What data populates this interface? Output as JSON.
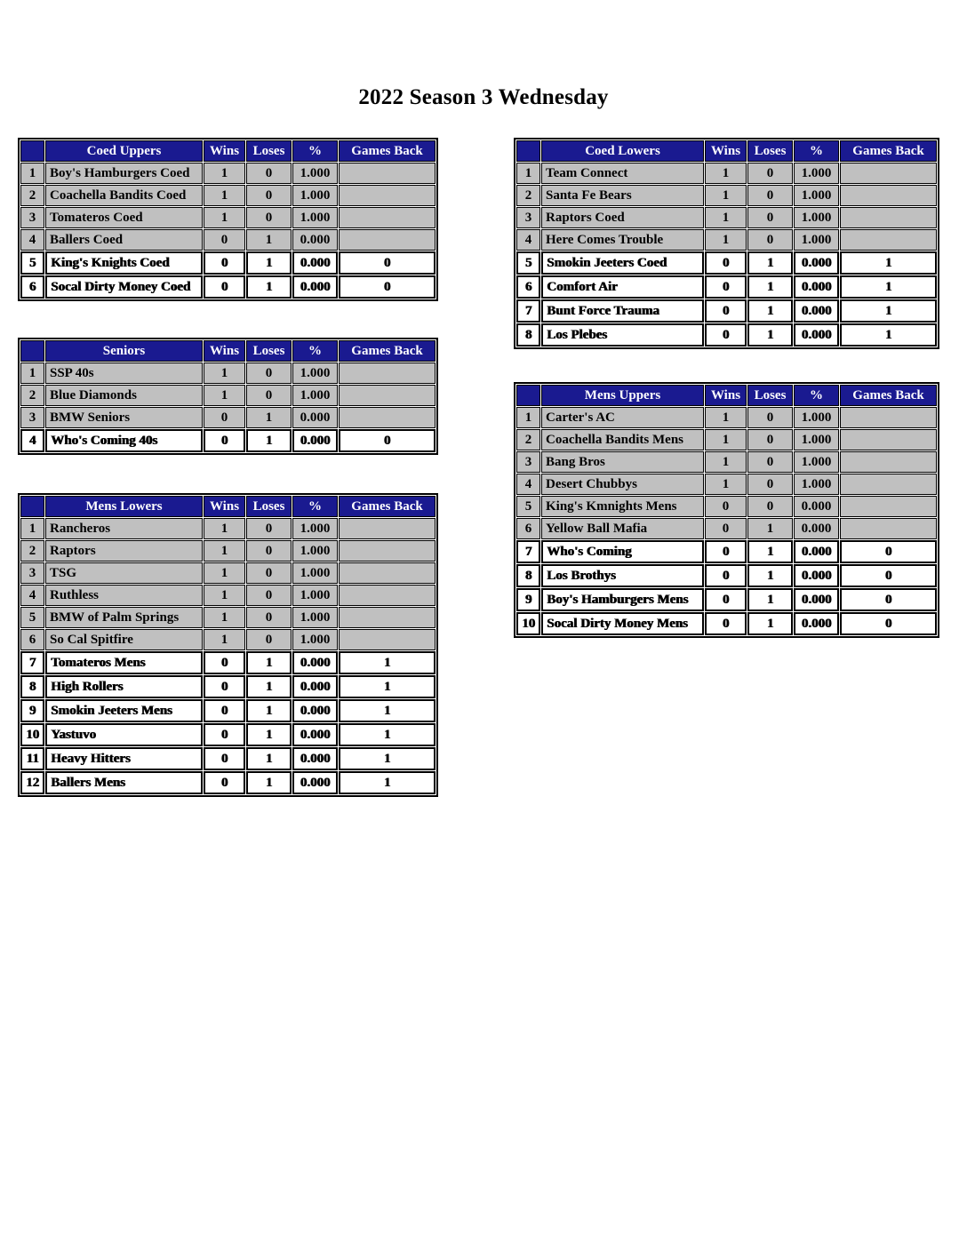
{
  "page": {
    "title": "2022 Season 3 Wednesday"
  },
  "columns": {
    "rank": "",
    "wins": "Wins",
    "loses": "Loses",
    "pct": "%",
    "games_back": "Games Back"
  },
  "tables": [
    {
      "id": "coed-uppers",
      "name": "Coed Uppers",
      "rows": [
        {
          "rank": "1",
          "team": "Boy's Hamburgers Coed",
          "wins": "1",
          "loses": "0",
          "pct": "1.000",
          "games_back": "",
          "shade": "upper"
        },
        {
          "rank": "2",
          "team": "Coachella Bandits Coed",
          "wins": "1",
          "loses": "0",
          "pct": "1.000",
          "games_back": "",
          "shade": "upper"
        },
        {
          "rank": "3",
          "team": "Tomateros Coed",
          "wins": "1",
          "loses": "0",
          "pct": "1.000",
          "games_back": "",
          "shade": "upper"
        },
        {
          "rank": "4",
          "team": "Ballers Coed",
          "wins": "0",
          "loses": "1",
          "pct": "0.000",
          "games_back": "",
          "shade": "upper"
        },
        {
          "rank": "5",
          "team": "King's Knights Coed",
          "wins": "0",
          "loses": "1",
          "pct": "0.000",
          "games_back": "0",
          "shade": "lower"
        },
        {
          "rank": "6",
          "team": "Socal Dirty Money Coed",
          "wins": "0",
          "loses": "1",
          "pct": "0.000",
          "games_back": "0",
          "shade": "lower"
        }
      ]
    },
    {
      "id": "coed-lowers",
      "name": "Coed Lowers",
      "rows": [
        {
          "rank": "1",
          "team": "Team Connect",
          "wins": "1",
          "loses": "0",
          "pct": "1.000",
          "games_back": "",
          "shade": "upper"
        },
        {
          "rank": "2",
          "team": "Santa Fe Bears",
          "wins": "1",
          "loses": "0",
          "pct": "1.000",
          "games_back": "",
          "shade": "upper"
        },
        {
          "rank": "3",
          "team": "Raptors Coed",
          "wins": "1",
          "loses": "0",
          "pct": "1.000",
          "games_back": "",
          "shade": "upper"
        },
        {
          "rank": "4",
          "team": "Here Comes Trouble",
          "wins": "1",
          "loses": "0",
          "pct": "1.000",
          "games_back": "",
          "shade": "upper"
        },
        {
          "rank": "5",
          "team": "Smokin Jeeters Coed",
          "wins": "0",
          "loses": "1",
          "pct": "0.000",
          "games_back": "1",
          "shade": "lower"
        },
        {
          "rank": "6",
          "team": "Comfort Air",
          "wins": "0",
          "loses": "1",
          "pct": "0.000",
          "games_back": "1",
          "shade": "lower"
        },
        {
          "rank": "7",
          "team": "Bunt Force Trauma",
          "wins": "0",
          "loses": "1",
          "pct": "0.000",
          "games_back": "1",
          "shade": "lower"
        },
        {
          "rank": "8",
          "team": "Los Plebes",
          "wins": "0",
          "loses": "1",
          "pct": "0.000",
          "games_back": "1",
          "shade": "lower"
        }
      ]
    },
    {
      "id": "seniors",
      "name": "Seniors",
      "rows": [
        {
          "rank": "1",
          "team": "SSP 40s",
          "wins": "1",
          "loses": "0",
          "pct": "1.000",
          "games_back": "",
          "shade": "upper"
        },
        {
          "rank": "2",
          "team": "Blue Diamonds",
          "wins": "1",
          "loses": "0",
          "pct": "1.000",
          "games_back": "",
          "shade": "upper"
        },
        {
          "rank": "3",
          "team": "BMW Seniors",
          "wins": "0",
          "loses": "1",
          "pct": "0.000",
          "games_back": "",
          "shade": "upper"
        },
        {
          "rank": "4",
          "team": "Who's Coming 40s",
          "wins": "0",
          "loses": "1",
          "pct": "0.000",
          "games_back": "0",
          "shade": "lower"
        }
      ]
    },
    {
      "id": "mens-uppers",
      "name": "Mens Uppers",
      "rows": [
        {
          "rank": "1",
          "team": "Carter's AC",
          "wins": "1",
          "loses": "0",
          "pct": "1.000",
          "games_back": "",
          "shade": "upper"
        },
        {
          "rank": "2",
          "team": "Coachella Bandits Mens",
          "wins": "1",
          "loses": "0",
          "pct": "1.000",
          "games_back": "",
          "shade": "upper"
        },
        {
          "rank": "3",
          "team": "Bang Bros",
          "wins": "1",
          "loses": "0",
          "pct": "1.000",
          "games_back": "",
          "shade": "upper"
        },
        {
          "rank": "4",
          "team": "Desert Chubbys",
          "wins": "1",
          "loses": "0",
          "pct": "1.000",
          "games_back": "",
          "shade": "upper"
        },
        {
          "rank": "5",
          "team": "King's Kmnights Mens",
          "wins": "0",
          "loses": "0",
          "pct": "0.000",
          "games_back": "",
          "shade": "upper"
        },
        {
          "rank": "6",
          "team": "Yellow Ball Mafia",
          "wins": "0",
          "loses": "1",
          "pct": "0.000",
          "games_back": "",
          "shade": "upper"
        },
        {
          "rank": "7",
          "team": "Who's Coming",
          "wins": "0",
          "loses": "1",
          "pct": "0.000",
          "games_back": "0",
          "shade": "lower"
        },
        {
          "rank": "8",
          "team": "Los Brothys",
          "wins": "0",
          "loses": "1",
          "pct": "0.000",
          "games_back": "0",
          "shade": "lower"
        },
        {
          "rank": "9",
          "team": "Boy's Hamburgers Mens",
          "wins": "0",
          "loses": "1",
          "pct": "0.000",
          "games_back": "0",
          "shade": "lower"
        },
        {
          "rank": "10",
          "team": "Socal Dirty Money Mens",
          "wins": "0",
          "loses": "1",
          "pct": "0.000",
          "games_back": "0",
          "shade": "lower"
        }
      ]
    },
    {
      "id": "mens-lowers",
      "name": "Mens Lowers",
      "rows": [
        {
          "rank": "1",
          "team": "Rancheros",
          "wins": "1",
          "loses": "0",
          "pct": "1.000",
          "games_back": "",
          "shade": "upper"
        },
        {
          "rank": "2",
          "team": "Raptors",
          "wins": "1",
          "loses": "0",
          "pct": "1.000",
          "games_back": "",
          "shade": "upper"
        },
        {
          "rank": "3",
          "team": "TSG",
          "wins": "1",
          "loses": "0",
          "pct": "1.000",
          "games_back": "",
          "shade": "upper"
        },
        {
          "rank": "4",
          "team": "Ruthless",
          "wins": "1",
          "loses": "0",
          "pct": "1.000",
          "games_back": "",
          "shade": "upper"
        },
        {
          "rank": "5",
          "team": "BMW of Palm Springs",
          "wins": "1",
          "loses": "0",
          "pct": "1.000",
          "games_back": "",
          "shade": "upper"
        },
        {
          "rank": "6",
          "team": "So Cal Spitfire",
          "wins": "1",
          "loses": "0",
          "pct": "1.000",
          "games_back": "",
          "shade": "upper"
        },
        {
          "rank": "7",
          "team": "Tomateros Mens",
          "wins": "0",
          "loses": "1",
          "pct": "0.000",
          "games_back": "1",
          "shade": "lower"
        },
        {
          "rank": "8",
          "team": "High Rollers",
          "wins": "0",
          "loses": "1",
          "pct": "0.000",
          "games_back": "1",
          "shade": "lower"
        },
        {
          "rank": "9",
          "team": "Smokin Jeeters Mens",
          "wins": "0",
          "loses": "1",
          "pct": "0.000",
          "games_back": "1",
          "shade": "lower"
        },
        {
          "rank": "10",
          "team": "Yastuvo",
          "wins": "0",
          "loses": "1",
          "pct": "0.000",
          "games_back": "1",
          "shade": "lower"
        },
        {
          "rank": "11",
          "team": "Heavy Hitters",
          "wins": "0",
          "loses": "1",
          "pct": "0.000",
          "games_back": "1",
          "shade": "lower"
        },
        {
          "rank": "12",
          "team": "Ballers Mens",
          "wins": "0",
          "loses": "1",
          "pct": "0.000",
          "games_back": "1",
          "shade": "lower"
        }
      ]
    }
  ]
}
